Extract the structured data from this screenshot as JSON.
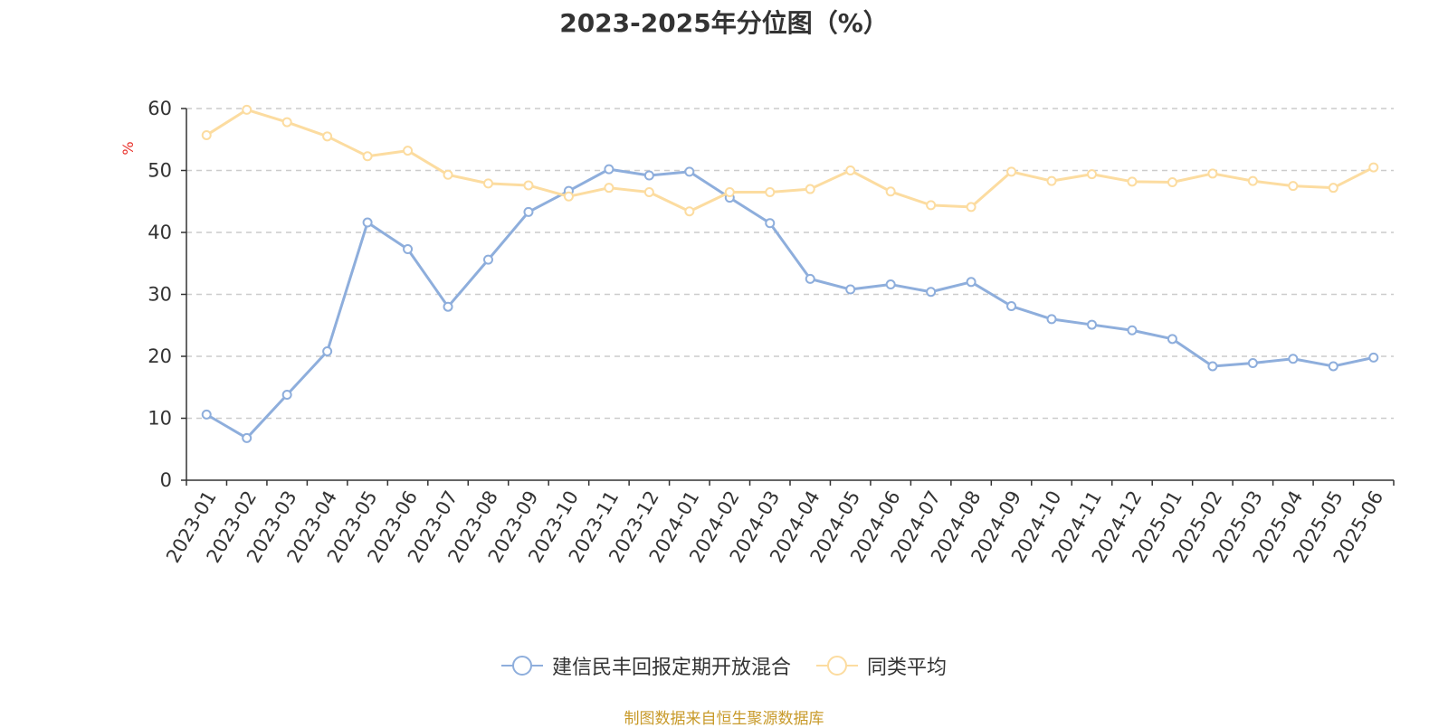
{
  "chart_data": {
    "type": "line",
    "title": "2023-2025年分位图（%）",
    "ylabel": "%",
    "xlabel": "",
    "ylim": [
      0,
      60
    ],
    "yticks": [
      0,
      10,
      20,
      30,
      40,
      50,
      60
    ],
    "grid": true,
    "legend_position": "bottom",
    "categories": [
      "2023-01",
      "2023-02",
      "2023-03",
      "2023-04",
      "2023-05",
      "2023-06",
      "2023-07",
      "2023-08",
      "2023-09",
      "2023-10",
      "2023-11",
      "2023-12",
      "2024-01",
      "2024-02",
      "2024-03",
      "2024-04",
      "2024-05",
      "2024-06",
      "2024-07",
      "2024-08",
      "2024-09",
      "2024-10",
      "2024-11",
      "2024-12",
      "2025-01",
      "2025-02",
      "2025-03",
      "2025-04",
      "2025-05",
      "2025-06"
    ],
    "series": [
      {
        "name": "建信民丰回报定期开放混合",
        "color": "#8eaedc",
        "values": [
          10.6,
          6.8,
          13.8,
          20.8,
          41.6,
          37.3,
          28.0,
          35.6,
          43.3,
          46.7,
          50.2,
          49.2,
          49.8,
          45.6,
          41.5,
          32.5,
          30.8,
          31.6,
          30.4,
          32.0,
          28.1,
          26.0,
          25.1,
          24.2,
          22.8,
          18.4,
          18.9,
          19.6,
          18.4,
          19.8
        ]
      },
      {
        "name": "同类平均",
        "color": "#fcdca0",
        "values": [
          55.7,
          59.8,
          57.8,
          55.5,
          52.3,
          53.2,
          49.3,
          47.9,
          47.6,
          45.8,
          47.2,
          46.5,
          43.4,
          46.5,
          46.5,
          47.0,
          50.0,
          46.6,
          44.4,
          44.1,
          49.8,
          48.3,
          49.4,
          48.2,
          48.1,
          49.5,
          48.3,
          47.5,
          47.2,
          50.5
        ]
      }
    ]
  },
  "source_note": "制图数据来自恒生聚源数据库"
}
